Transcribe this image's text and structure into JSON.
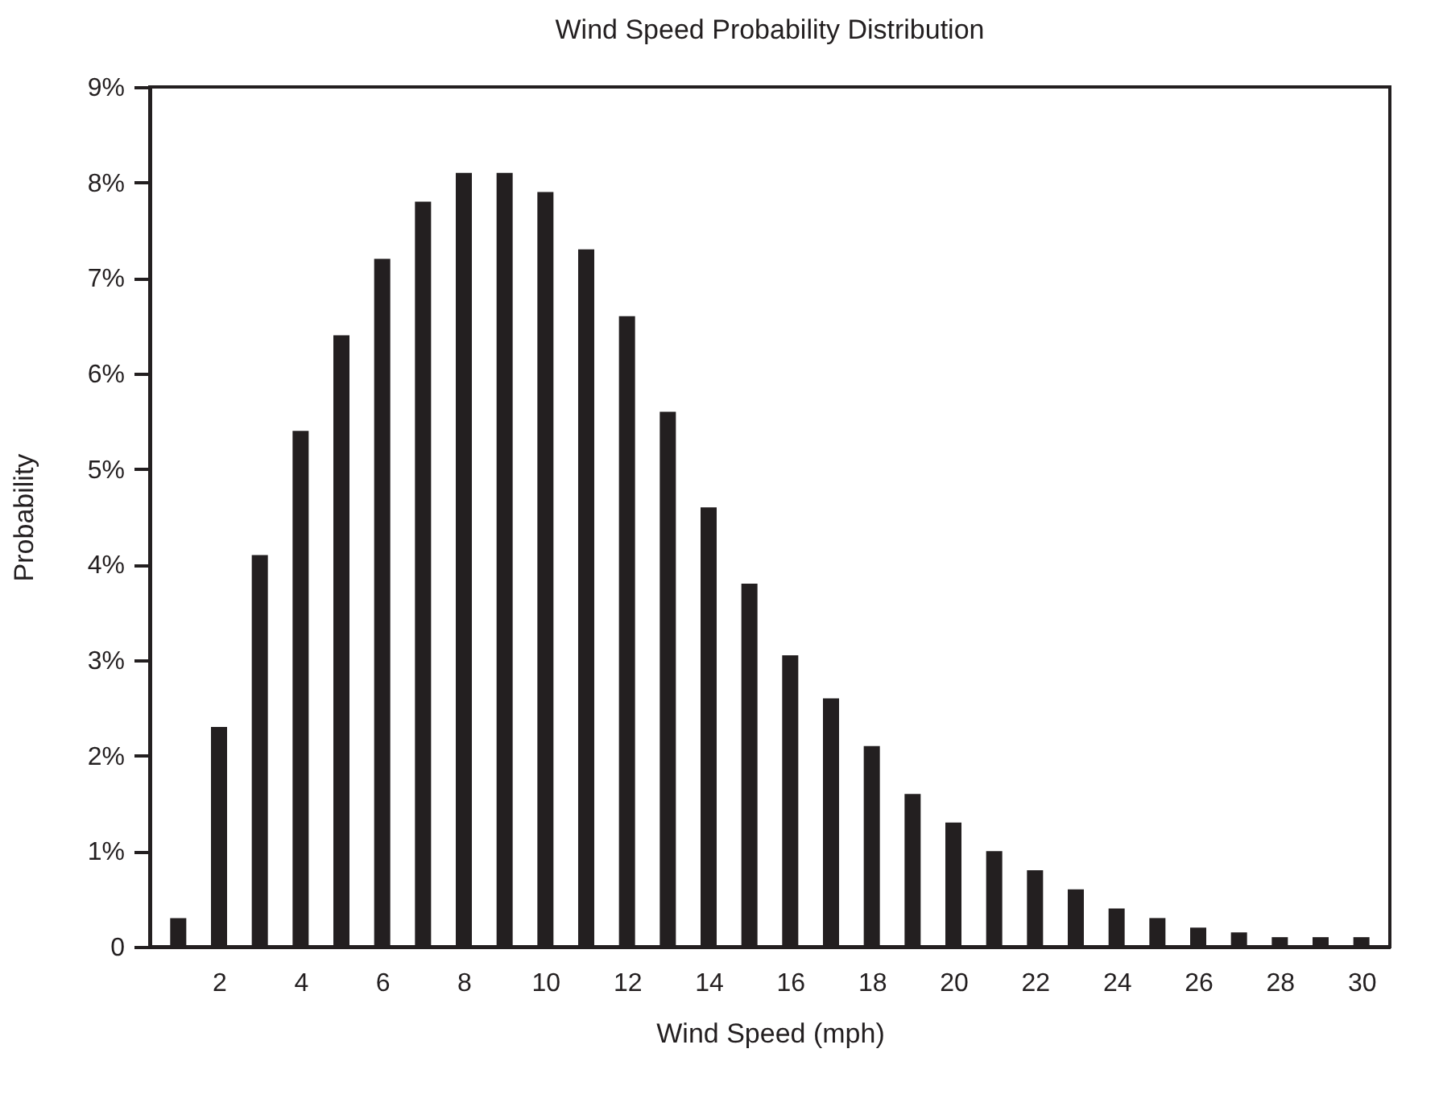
{
  "chart_data": {
    "type": "bar",
    "title": "Wind Speed Probability Distribution",
    "xlabel": "Wind Speed (mph)",
    "ylabel": "Probability",
    "x": [
      1,
      2,
      3,
      4,
      5,
      6,
      7,
      8,
      9,
      10,
      11,
      12,
      13,
      14,
      15,
      16,
      17,
      18,
      19,
      20,
      21,
      22,
      23,
      24,
      25,
      26,
      27,
      28,
      29,
      30
    ],
    "values": [
      0.3,
      2.3,
      4.1,
      5.4,
      6.4,
      7.2,
      7.8,
      8.1,
      8.1,
      7.9,
      7.3,
      6.6,
      5.6,
      4.6,
      3.8,
      3.05,
      2.6,
      2.1,
      1.6,
      1.3,
      1.0,
      0.8,
      0.6,
      0.4,
      0.3,
      0.2,
      0.15,
      0.1,
      0.1,
      0.1
    ],
    "color": "#231f20",
    "xlim": [
      0.5,
      30.5
    ],
    "xticks": [
      2,
      4,
      6,
      8,
      10,
      12,
      14,
      16,
      18,
      20,
      22,
      24,
      26,
      28,
      30
    ],
    "ylim": [
      0,
      9
    ],
    "yticks": [
      0,
      {
        "value": 1,
        "label": "1%"
      },
      {
        "value": 2,
        "label": "2%"
      },
      {
        "value": 3,
        "label": "3%"
      },
      {
        "value": 4,
        "label": "4%"
      },
      {
        "value": 5,
        "label": "5%"
      },
      {
        "value": 6,
        "label": "6%"
      },
      {
        "value": 7,
        "label": "7%"
      },
      {
        "value": 8,
        "label": "8%"
      },
      {
        "value": 9,
        "label": "9%"
      }
    ],
    "grid": false
  }
}
